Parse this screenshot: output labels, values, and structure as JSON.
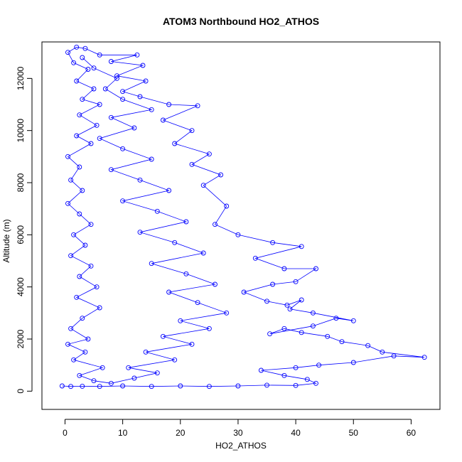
{
  "chart_data": {
    "type": "scatter",
    "title": "ATOM3 Northbound HO2_ATHOS",
    "xlabel": "HO2_ATHOS",
    "ylabel": "Altitude (m)",
    "xlim": [
      -4,
      65
    ],
    "ylim": [
      -700,
      13400
    ],
    "x_ticks": [
      "0",
      "10",
      "20",
      "30",
      "40",
      "50",
      "60"
    ],
    "y_ticks": [
      "0",
      "2000",
      "4000",
      "6000",
      "8000",
      "10000",
      "12000"
    ],
    "grid": false,
    "legend": "none",
    "point_color": "#0000ff",
    "line_color": "#0000ff",
    "marker": "open-circle",
    "connected": true,
    "series": [
      {
        "points": [
          [
            -0.5,
            200
          ],
          [
            1.0,
            180
          ],
          [
            3.0,
            190
          ],
          [
            6.0,
            180
          ],
          [
            10.0,
            200
          ],
          [
            15.0,
            180
          ],
          [
            20.0,
            200
          ],
          [
            25.0,
            180
          ],
          [
            30.0,
            200
          ],
          [
            35.0,
            230
          ],
          [
            40.0,
            220
          ],
          [
            43.5,
            300
          ],
          [
            42.0,
            450
          ],
          [
            38.0,
            600
          ],
          [
            34.0,
            800
          ],
          [
            40.0,
            900
          ],
          [
            44.0,
            1000
          ],
          [
            50.0,
            1100
          ],
          [
            57.0,
            1350
          ],
          [
            62.3,
            1300
          ],
          [
            55.0,
            1500
          ],
          [
            52.5,
            1750
          ],
          [
            48.0,
            1900
          ],
          [
            45.5,
            2100
          ],
          [
            41.0,
            2250
          ],
          [
            38.0,
            2400
          ],
          [
            35.5,
            2200
          ],
          [
            43.0,
            2500
          ],
          [
            47.0,
            2800
          ],
          [
            50.0,
            2700
          ],
          [
            43.0,
            3000
          ],
          [
            39.0,
            3150
          ],
          [
            41.0,
            3500
          ],
          [
            38.5,
            3300
          ],
          [
            35.0,
            3450
          ],
          [
            31.0,
            3800
          ],
          [
            36.0,
            4100
          ],
          [
            40.0,
            4200
          ],
          [
            43.5,
            4700
          ],
          [
            38.0,
            4700
          ],
          [
            33.0,
            5100
          ],
          [
            41.0,
            5550
          ],
          [
            36.0,
            5700
          ],
          [
            30.0,
            6000
          ],
          [
            26.0,
            6400
          ],
          [
            28.0,
            7100
          ],
          [
            24.0,
            7900
          ],
          [
            27.0,
            8300
          ],
          [
            22.0,
            8700
          ],
          [
            25.0,
            9100
          ],
          [
            19.0,
            9500
          ],
          [
            22.0,
            10000
          ],
          [
            17.0,
            10400
          ],
          [
            23.0,
            10950
          ],
          [
            18.0,
            11000
          ],
          [
            13.0,
            11300
          ],
          [
            10.0,
            11500
          ],
          [
            14.0,
            11900
          ],
          [
            9.0,
            12100
          ],
          [
            13.5,
            12500
          ],
          [
            8.0,
            12650
          ],
          [
            12.5,
            12900
          ],
          [
            6.0,
            12900
          ],
          [
            3.5,
            13150
          ],
          [
            2.0,
            13200
          ],
          [
            0.5,
            13000
          ],
          [
            1.5,
            12600
          ],
          [
            4.0,
            12350
          ],
          [
            2.0,
            11900
          ],
          [
            5.0,
            11600
          ],
          [
            3.0,
            11200
          ],
          [
            6.0,
            11000
          ],
          [
            2.5,
            10600
          ],
          [
            5.5,
            10200
          ],
          [
            2.0,
            9800
          ],
          [
            4.5,
            9500
          ],
          [
            0.5,
            9000
          ],
          [
            2.5,
            8600
          ],
          [
            1.0,
            8100
          ],
          [
            3.0,
            7700
          ],
          [
            0.5,
            7200
          ],
          [
            2.5,
            6800
          ],
          [
            4.5,
            6400
          ],
          [
            1.5,
            6000
          ],
          [
            3.5,
            5600
          ],
          [
            1.0,
            5200
          ],
          [
            4.5,
            4800
          ],
          [
            2.5,
            4400
          ],
          [
            5.5,
            4000
          ],
          [
            2.0,
            3600
          ],
          [
            6.0,
            3200
          ],
          [
            3.0,
            2800
          ],
          [
            1.0,
            2400
          ],
          [
            4.0,
            2000
          ],
          [
            0.5,
            1800
          ],
          [
            3.5,
            1500
          ],
          [
            1.5,
            1200
          ],
          [
            6.5,
            900
          ],
          [
            2.5,
            600
          ],
          [
            5.0,
            400
          ],
          [
            8.0,
            300
          ],
          [
            12.0,
            500
          ],
          [
            16.0,
            700
          ],
          [
            11.0,
            900
          ],
          [
            19.0,
            1200
          ],
          [
            14.0,
            1500
          ],
          [
            22.0,
            1800
          ],
          [
            17.0,
            2100
          ],
          [
            25.0,
            2400
          ],
          [
            20.0,
            2700
          ],
          [
            28.0,
            3000
          ],
          [
            23.0,
            3400
          ],
          [
            18.0,
            3800
          ],
          [
            26.0,
            4100
          ],
          [
            21.0,
            4500
          ],
          [
            15.0,
            4900
          ],
          [
            24.0,
            5300
          ],
          [
            19.0,
            5700
          ],
          [
            13.0,
            6100
          ],
          [
            21.0,
            6500
          ],
          [
            16.0,
            6900
          ],
          [
            10.0,
            7300
          ],
          [
            18.0,
            7700
          ],
          [
            13.0,
            8100
          ],
          [
            8.0,
            8500
          ],
          [
            15.0,
            8900
          ],
          [
            10.0,
            9300
          ],
          [
            6.0,
            9700
          ],
          [
            12.0,
            10100
          ],
          [
            8.0,
            10500
          ],
          [
            15.0,
            10800
          ],
          [
            10.0,
            11200
          ],
          [
            7.0,
            11600
          ],
          [
            9.0,
            12000
          ],
          [
            5.0,
            12400
          ],
          [
            3.0,
            12800
          ]
        ]
      }
    ]
  }
}
